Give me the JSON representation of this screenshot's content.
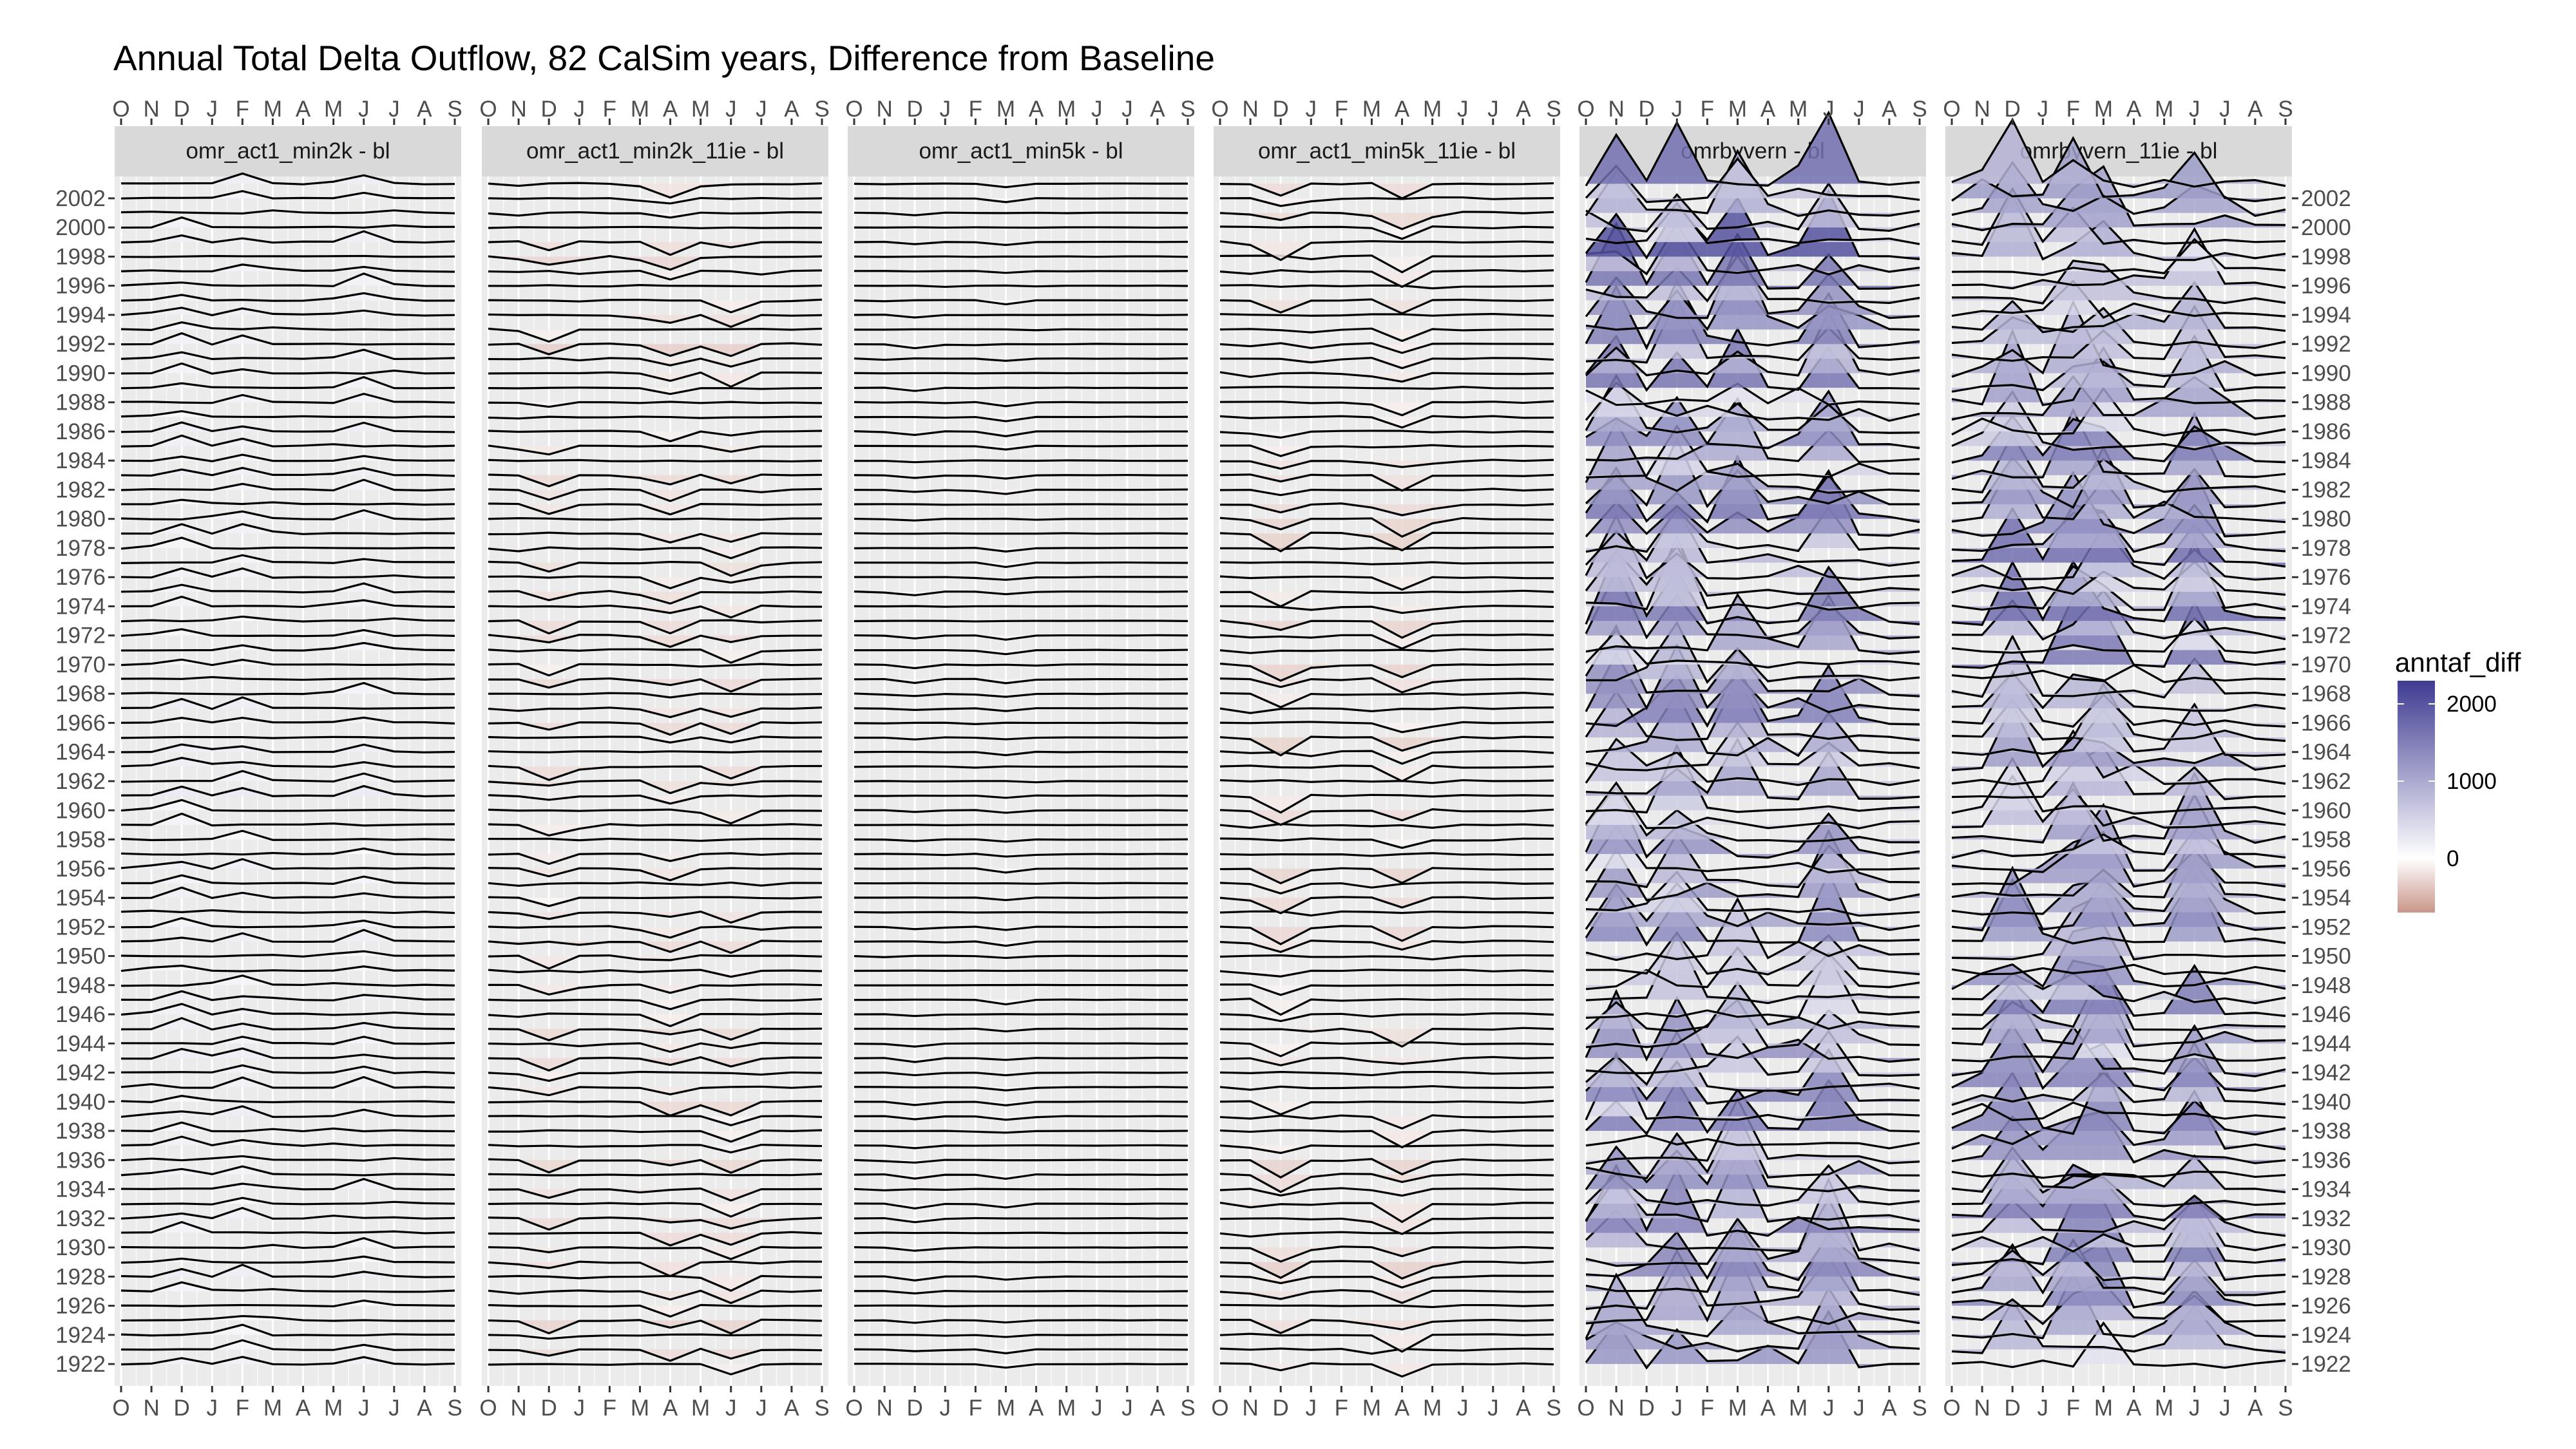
{
  "chart_data": {
    "type": "ridgeline",
    "title": "Annual Total Delta Outflow, 82 CalSim years, Difference from Baseline",
    "x_tick_labels": [
      "O",
      "N",
      "D",
      "J",
      "F",
      "M",
      "A",
      "M",
      "J",
      "J",
      "A",
      "S"
    ],
    "y_range": [
      1922,
      2003
    ],
    "y_tick_labels": [
      2002,
      2000,
      1998,
      1996,
      1994,
      1992,
      1990,
      1988,
      1986,
      1984,
      1982,
      1980,
      1978,
      1976,
      1974,
      1972,
      1970,
      1968,
      1966,
      1964,
      1962,
      1960,
      1958,
      1956,
      1954,
      1952,
      1950,
      1948,
      1946,
      1944,
      1942,
      1940,
      1938,
      1936,
      1934,
      1932,
      1930,
      1928,
      1926,
      1924,
      1922
    ],
    "panels": [
      {
        "label": "omr_act1_min2k - bl",
        "peak_months": [
          2,
          4,
          8
        ],
        "magnitude": 250
      },
      {
        "label": "omr_act1_min2k_11ie - bl",
        "peak_months": [
          2,
          6,
          8
        ],
        "magnitude": -300
      },
      {
        "label": "omr_act1_min5k - bl",
        "peak_months": [
          2,
          5
        ],
        "magnitude": -100
      },
      {
        "label": "omr_act1_min5k_11ie - bl",
        "peak_months": [
          2,
          6
        ],
        "magnitude": -400
      },
      {
        "label": "omrbyvern - bl",
        "peak_months": [
          1,
          3,
          5,
          8
        ],
        "magnitude": 1500
      },
      {
        "label": "omrbyvern_11ie - bl",
        "peak_months": [
          2,
          4,
          5,
          8
        ],
        "magnitude": 1500
      }
    ],
    "legend": {
      "title": "anntaf_diff",
      "ticks": [
        2000,
        1000,
        0
      ],
      "range": [
        -700,
        2300
      ],
      "colors": {
        "low": "#c9958a",
        "mid": "#ffffff",
        "high": "#3f3b92"
      },
      "placement": "right"
    },
    "colors": {
      "panel_bg": "#ebebeb",
      "strip_bg": "#d9d9d9",
      "grid": "#ffffff"
    }
  }
}
